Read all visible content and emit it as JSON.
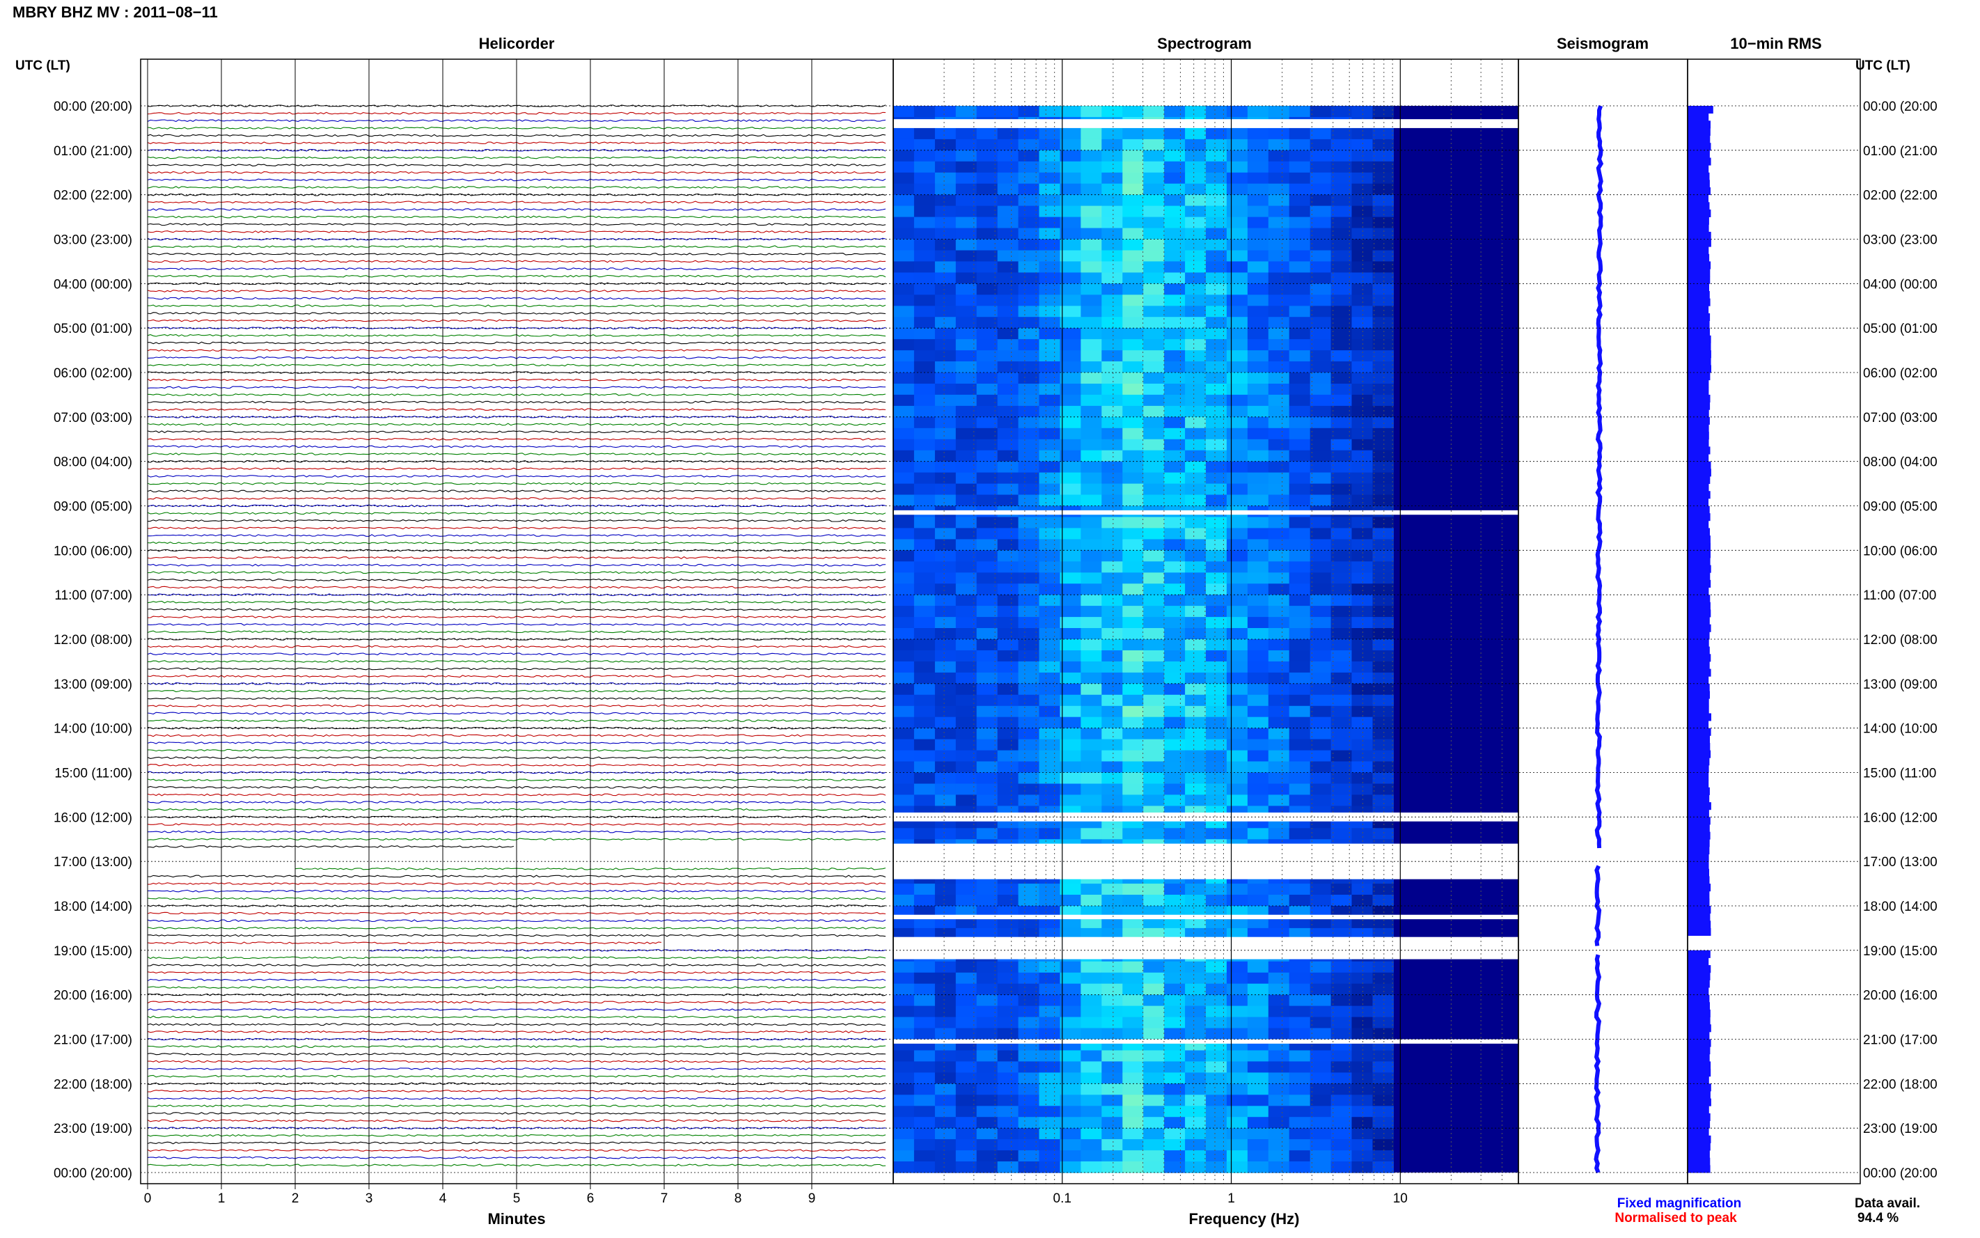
{
  "title": "MBRY BHZ MV : 2011−08−11",
  "time_header": "UTC (LT)",
  "panels": {
    "helicorder": "Helicorder",
    "spectrogram": "Spectrogram",
    "seismogram": "Seismogram",
    "rms": "10−min RMS"
  },
  "xlabels": {
    "minutes": "Minutes",
    "frequency": "Frequency (Hz)"
  },
  "legend": {
    "fixed": "Fixed magnification",
    "normalised": "Normalised to peak",
    "fixed_color": "#0000ff",
    "normalised_color": "#ff0000"
  },
  "availability": {
    "label": "Data avail.",
    "value": "94.4 %"
  },
  "colors": {
    "trace_cycle": [
      "#000000",
      "#c00000",
      "#0000c0",
      "#008000"
    ],
    "spectrogram_low": "#00008c",
    "spectrogram_high": "#a0ffb0",
    "seismogram": "#1010ff",
    "rms": "#1010ff"
  },
  "chart_data": [
    {
      "type": "line",
      "panel": "Helicorder",
      "xlabel": "Minutes",
      "x_ticks": [
        0,
        1,
        2,
        3,
        4,
        5,
        6,
        7,
        8,
        9
      ],
      "xlim": [
        0,
        10
      ],
      "row_minutes": 10,
      "rows": 144,
      "hour_labels": [
        "00:00 (20:00)",
        "01:00 (21:00)",
        "02:00 (22:00)",
        "03:00 (23:00)",
        "04:00 (00:00)",
        "05:00 (01:00)",
        "06:00 (02:00)",
        "07:00 (03:00)",
        "08:00 (04:00)",
        "09:00 (05:00)",
        "10:00 (06:00)",
        "11:00 (07:00)",
        "12:00 (08:00)",
        "13:00 (09:00)",
        "14:00 (10:00)",
        "15:00 (11:00)",
        "16:00 (12:00)",
        "17:00 (13:00)",
        "18:00 (14:00)",
        "19:00 (15:00)",
        "20:00 (16:00)",
        "21:00 (17:00)",
        "22:00 (18:00)",
        "23:00 (19:00)",
        "00:00 (20:00)"
      ],
      "gaps_hours": [
        [
          16.75,
          17.2
        ],
        [
          18.95,
          19.05
        ]
      ]
    },
    {
      "type": "heatmap",
      "panel": "Spectrogram",
      "xlabel": "Frequency (Hz)",
      "x_scale": "log",
      "x_ticks": [
        0.1,
        1,
        10
      ],
      "xlim": [
        0.01,
        50
      ],
      "peak_band_hz": [
        0.15,
        0.6
      ],
      "gaps_hours": [
        [
          0.3,
          0.5
        ],
        [
          9.1,
          9.2
        ],
        [
          15.9,
          16.1
        ],
        [
          16.6,
          17.4
        ],
        [
          18.2,
          18.3
        ],
        [
          18.7,
          19.2
        ],
        [
          21.0,
          21.1
        ]
      ]
    },
    {
      "type": "line",
      "panel": "Seismogram"
    },
    {
      "type": "bar",
      "panel": "10-min RMS",
      "gaps_hours": [
        [
          18.65,
          18.95
        ]
      ]
    }
  ]
}
